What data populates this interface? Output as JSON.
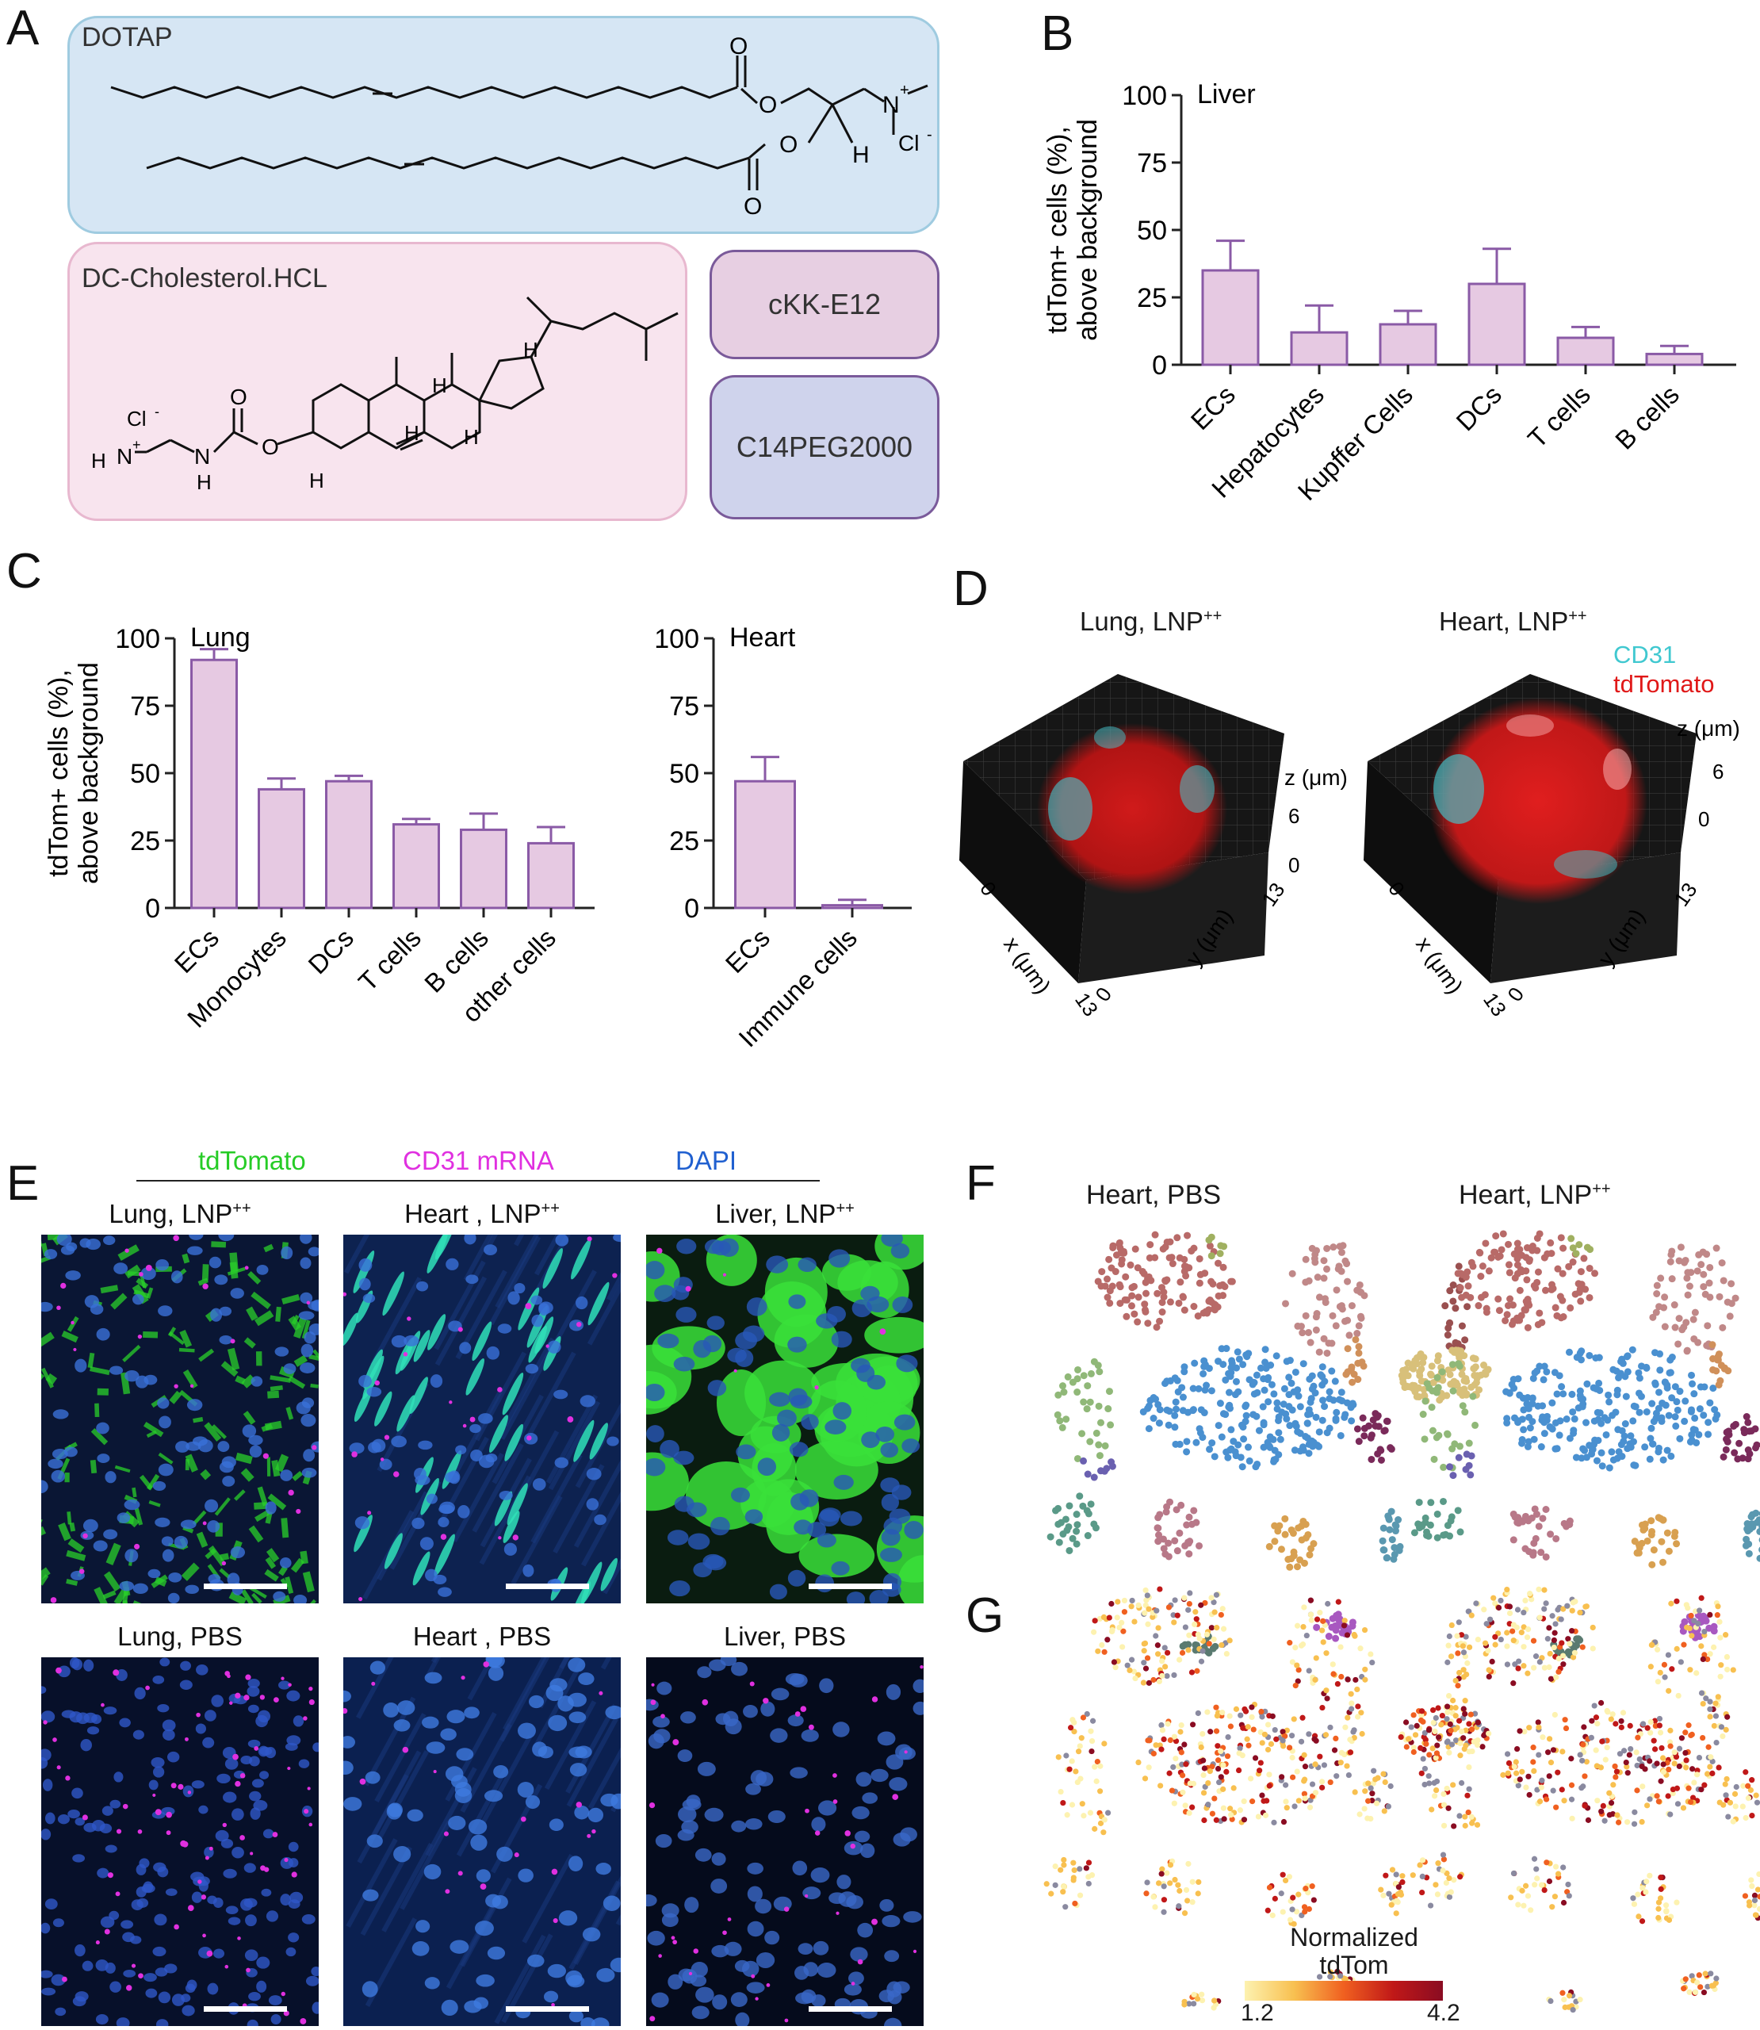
{
  "panels": {
    "A": {
      "label": "A",
      "dotap": "DOTAP",
      "dc_chol": "DC-Cholesterol.HCL",
      "ckk": "cKK-E12",
      "peg": "C14PEG2000",
      "chem": {
        "n_plus": "N",
        "plus": "+",
        "cl": "Cl",
        "minus": "-",
        "o": "O",
        "h": "H",
        "nh": "N",
        "hh": "H"
      }
    },
    "B": {
      "label": "B"
    },
    "C": {
      "label": "C"
    },
    "D": {
      "label": "D",
      "title_lung": "Lung, LNP",
      "title_heart": "Heart, LNP",
      "sup": "++",
      "legend_cd31": "CD31",
      "legend_tdtomato": "tdTomato",
      "axis_x": "x (μm)",
      "axis_y": "y (μm)",
      "axis_z": "z (μm)",
      "tick_0": "0",
      "tick_13": "13",
      "tick_6": "6"
    },
    "E": {
      "label": "E",
      "legend_tdtomato": "tdTomato",
      "legend_cd31": "CD31 mRNA",
      "legend_dapi": "DAPI",
      "titles": [
        "Lung, LNP",
        "Heart , LNP",
        "Liver, LNP",
        "Lung, PBS",
        "Heart , PBS",
        "Liver, PBS"
      ],
      "sup": "++"
    },
    "F": {
      "label": "F",
      "title_pbs": "Heart, PBS",
      "title_lnp": "Heart, LNP",
      "sup": "++"
    },
    "G": {
      "label": "G",
      "colorbar_title_1": "Normalized",
      "colorbar_title_2": "tdTom",
      "colorbar_min": "1.2",
      "colorbar_max": "4.2"
    }
  },
  "chart_data": [
    {
      "type": "bar",
      "title": "Liver",
      "ylabel": "tdTom+ cells (%), above background",
      "categories": [
        "ECs",
        "Hepatocytes",
        "Kupffer Cells",
        "DCs",
        "T cells",
        "B cells"
      ],
      "values": [
        35,
        12,
        15,
        30,
        10,
        4
      ],
      "errors": [
        11,
        10,
        5,
        13,
        4,
        3
      ],
      "ylim": [
        0,
        100
      ],
      "yticks": [
        "0",
        "25",
        "50",
        "75",
        "100"
      ]
    },
    {
      "type": "bar",
      "title": "Lung",
      "ylabel": "tdTom+ cells (%), above background",
      "categories": [
        "ECs",
        "Monocytes",
        "DCs",
        "T cells",
        "B cells",
        "other cells"
      ],
      "values": [
        92,
        44,
        47,
        31,
        29,
        24
      ],
      "errors": [
        4,
        4,
        2,
        2,
        6,
        6
      ],
      "ylim": [
        0,
        100
      ],
      "yticks": [
        "0",
        "25",
        "50",
        "75",
        "100"
      ]
    },
    {
      "type": "bar",
      "title": "Heart",
      "ylabel": "",
      "categories": [
        "ECs",
        "Immune cells"
      ],
      "values": [
        47,
        1
      ],
      "errors": [
        9,
        2
      ],
      "ylim": [
        0,
        100
      ],
      "yticks": [
        "0",
        "25",
        "50",
        "75",
        "100"
      ]
    }
  ],
  "colors": {
    "dotap_bg": "#d6e6f4",
    "dotap_border": "#9fcbe0",
    "dc_bg": "#f8e4ee",
    "dc_border": "#e8b8cf",
    "ckk_bg": "#e7cfe2",
    "peg_bg": "#cfd3ec",
    "bar_fill": "#e6c9e2",
    "bar_edge": "#8a5aa6",
    "tdtomato_green": "#26cc26",
    "cd31_magenta": "#e030e0",
    "dapi_blue": "#2060d0",
    "cd31_3d": "#40c8d0",
    "tdtomato_3d": "#e01818"
  }
}
